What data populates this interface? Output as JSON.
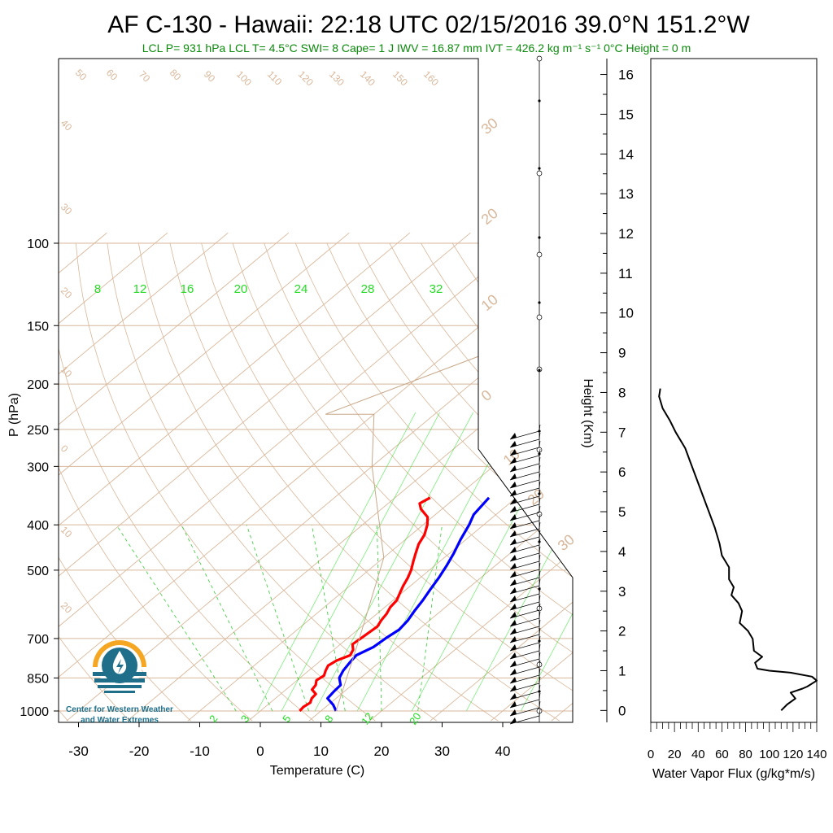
{
  "header": {
    "title": "AF C-130 - Hawaii: 22:18 UTC 02/15/2016  39.0°N 151.2°W",
    "subtitle": "LCL P= 931 hPa  LCL T= 4.5°C  SWI= 8  Cape= 1 J  IWV = 16.87 mm  IVT = 426.2 kg m⁻¹ s⁻¹   0°C Height = 0 m"
  },
  "logo": {
    "line1": "Center for Western Weather",
    "line2": "and Water Extremes",
    "colors": {
      "orange": "#f5a623",
      "teal": "#1f6f8b",
      "light": "#7fc4d8"
    }
  },
  "colors": {
    "temperature": "#ff0000",
    "dewpoint": "#0000ff",
    "isotherm": "#d8b79a",
    "adiabat": "#d8b79a",
    "mixing_ratio": "#00e000",
    "wind": "#000000",
    "flux": "#000000"
  },
  "chart_data": [
    {
      "type": "line",
      "name": "skew-t",
      "xlabel": "Temperature (C)",
      "ylabel": "P (hPa)",
      "xlim": [
        -35,
        50
      ],
      "ylim": [
        1000,
        100
      ],
      "x_ticks": [
        "-30",
        "-20",
        "-10",
        "0",
        "10",
        "20",
        "30",
        "40"
      ],
      "y_ticks": [
        "100",
        "150",
        "200",
        "250",
        "300",
        "400",
        "500",
        "700",
        "850",
        "1000"
      ],
      "isotherm_labels": [
        "30",
        "20",
        "10",
        "0",
        "10",
        "20",
        "30"
      ],
      "adiabat_labels": [
        "50",
        "60",
        "70",
        "80",
        "90",
        "100",
        "110",
        "120",
        "130",
        "140",
        "150",
        "160",
        "40",
        "30",
        "20",
        "10",
        "0",
        "10",
        "20"
      ],
      "mixing_ratio_labels": [
        "8",
        "12",
        "16",
        "20",
        "24",
        "28",
        "32"
      ],
      "mixing_ratio_bottom_labels": [
        "2",
        "3",
        "5",
        "8",
        "12",
        "20"
      ],
      "series": [
        {
          "key": "temperature",
          "points": [
            [
              6.5,
              1000
            ],
            [
              6.3,
              980
            ],
            [
              6.6,
              960
            ],
            [
              6.0,
              940
            ],
            [
              5.8,
              920
            ],
            [
              4.3,
              900
            ],
            [
              4.0,
              880
            ],
            [
              3.2,
              860
            ],
            [
              3.5,
              840
            ],
            [
              2.8,
              820
            ],
            [
              2.2,
              800
            ],
            [
              2.6,
              780
            ],
            [
              3.8,
              760
            ],
            [
              3.2,
              740
            ],
            [
              2.0,
              720
            ],
            [
              2.2,
              700
            ],
            [
              2.4,
              680
            ],
            [
              2.6,
              660
            ],
            [
              2.0,
              640
            ],
            [
              1.6,
              620
            ],
            [
              0.9,
              600
            ],
            [
              0.6,
              580
            ],
            [
              -0.3,
              560
            ],
            [
              -1.2,
              540
            ],
            [
              -2.0,
              520
            ],
            [
              -3.0,
              500
            ],
            [
              -4.3,
              480
            ],
            [
              -5.6,
              460
            ],
            [
              -6.9,
              440
            ],
            [
              -7.8,
              420
            ],
            [
              -9.3,
              400
            ],
            [
              -10.8,
              385
            ],
            [
              -13.5,
              370
            ],
            [
              -14.8,
              360
            ],
            [
              -14.2,
              350
            ]
          ]
        },
        {
          "key": "dewpoint",
          "points": [
            [
              12.5,
              1000
            ],
            [
              10.8,
              970
            ],
            [
              8.6,
              940
            ],
            [
              8.3,
              910
            ],
            [
              8.1,
              880
            ],
            [
              6.5,
              850
            ],
            [
              5.7,
              820
            ],
            [
              5.2,
              790
            ],
            [
              4.8,
              760
            ],
            [
              6.0,
              730
            ],
            [
              6.3,
              700
            ],
            [
              6.8,
              670
            ],
            [
              6.4,
              640
            ],
            [
              5.6,
              610
            ],
            [
              4.9,
              580
            ],
            [
              4.0,
              550
            ],
            [
              3.1,
              520
            ],
            [
              2.0,
              490
            ],
            [
              0.7,
              460
            ],
            [
              -0.9,
              430
            ],
            [
              -2.4,
              400
            ],
            [
              -3.7,
              380
            ],
            [
              -4.5,
              350
            ]
          ]
        }
      ]
    },
    {
      "type": "line",
      "name": "water-vapor-flux",
      "xlabel": "Water Vapor Flux (g/kg*m/s)",
      "ylabel": "Height (Km)",
      "xlim": [
        0,
        140
      ],
      "ylim": [
        -0.3,
        16.4
      ],
      "x_ticks": [
        "0",
        "20",
        "40",
        "60",
        "80",
        "100",
        "120",
        "140"
      ],
      "y_ticks": [
        "0",
        "1",
        "2",
        "3",
        "4",
        "5",
        "6",
        "7",
        "8",
        "9",
        "10",
        "11",
        "12",
        "13",
        "14",
        "15",
        "16"
      ],
      "series": [
        {
          "key": "flux",
          "points": [
            [
              110,
              0.0
            ],
            [
              115,
              0.15
            ],
            [
              122,
              0.3
            ],
            [
              118,
              0.45
            ],
            [
              128,
              0.55
            ],
            [
              132,
              0.6
            ],
            [
              140,
              0.75
            ],
            [
              136,
              0.85
            ],
            [
              118,
              0.95
            ],
            [
              100,
              1.0
            ],
            [
              90,
              1.05
            ],
            [
              88,
              1.2
            ],
            [
              94,
              1.35
            ],
            [
              87,
              1.5
            ],
            [
              86,
              1.8
            ],
            [
              82,
              2.0
            ],
            [
              75,
              2.2
            ],
            [
              77,
              2.5
            ],
            [
              74,
              2.7
            ],
            [
              68,
              2.9
            ],
            [
              70,
              3.1
            ],
            [
              66,
              3.3
            ],
            [
              66,
              3.6
            ],
            [
              60,
              3.9
            ],
            [
              58,
              4.2
            ],
            [
              54,
              4.6
            ],
            [
              49,
              5.0
            ],
            [
              44,
              5.4
            ],
            [
              39,
              5.8
            ],
            [
              34,
              6.2
            ],
            [
              29,
              6.6
            ],
            [
              21,
              7.0
            ],
            [
              16,
              7.3
            ],
            [
              10,
              7.6
            ],
            [
              7,
              7.9
            ],
            [
              8,
              8.1
            ]
          ]
        }
      ]
    }
  ]
}
